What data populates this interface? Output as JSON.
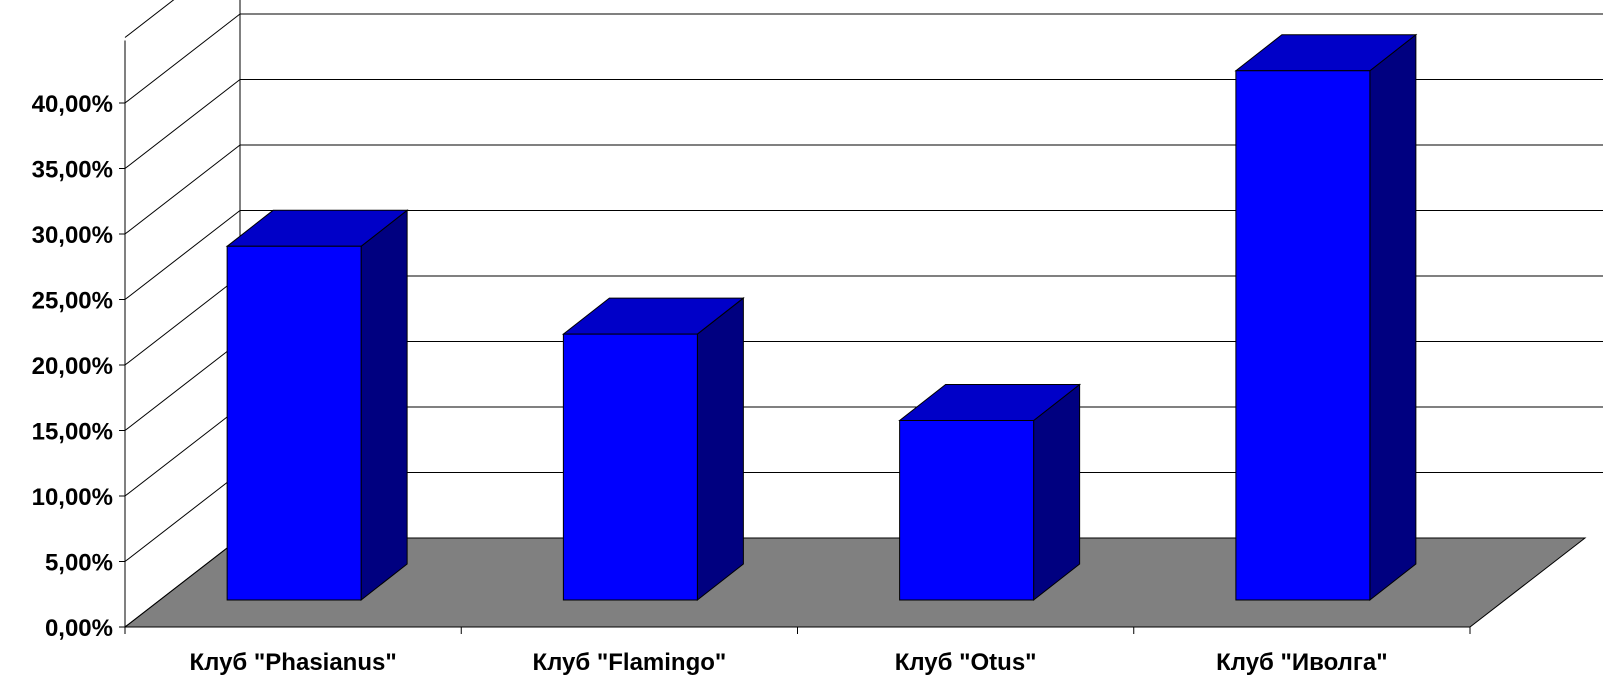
{
  "chart_data": {
    "type": "bar",
    "categories": [
      "Клуб \"Phasianus\"",
      "Клуб \"Flamingo\"",
      "Клуб \"Otus\"",
      "Клуб \"Иволга\""
    ],
    "values": [
      27.0,
      20.3,
      13.7,
      40.4
    ],
    "ylim": [
      0,
      45
    ],
    "yticks": [
      "0,00%",
      "5,00%",
      "10,00%",
      "15,00%",
      "20,00%",
      "25,00%",
      "30,00%",
      "35,00%",
      "40,00%"
    ],
    "grid": true,
    "three_d": true,
    "colors": {
      "bar_front": "#0000ff",
      "bar_top": "#0000c8",
      "bar_side": "#000080",
      "floor": "#808080",
      "gridline": "#000000"
    }
  }
}
